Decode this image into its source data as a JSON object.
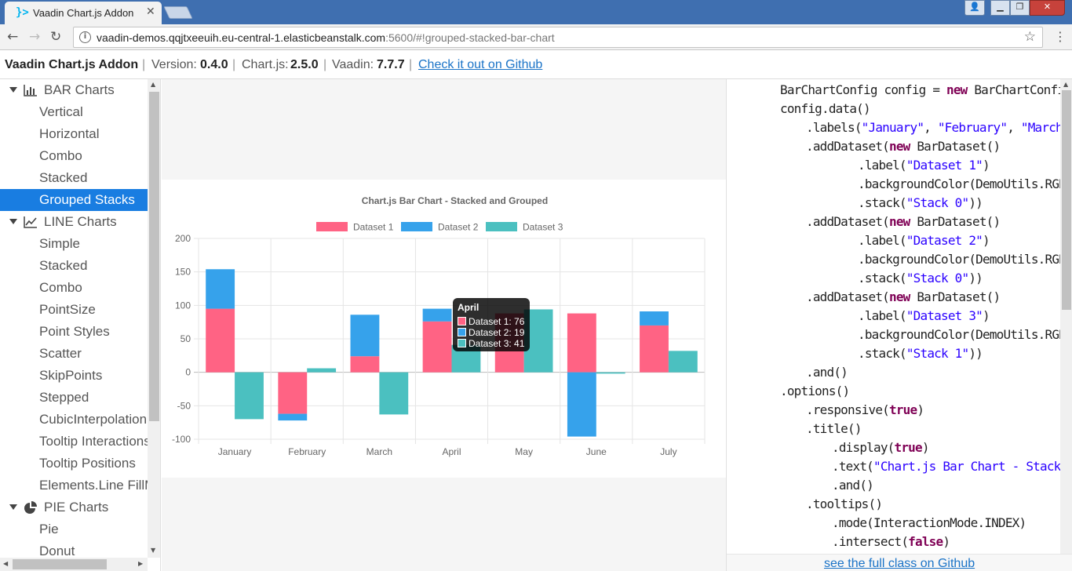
{
  "browser": {
    "tab_title": "Vaadin Chart.js Addon",
    "url_host": "vaadin-demos.qqjtxeeuih.eu-central-1.elasticbeanstalk.com",
    "url_rest": ":5600/#!grouped-stacked-bar-chart"
  },
  "header": {
    "app_name": "Vaadin Chart.js Addon",
    "version_label": "Version:",
    "version": "0.4.0",
    "chartjs_label": "Chart.js:",
    "chartjs_version": "2.5.0",
    "vaadin_label": "Vaadin:",
    "vaadin_version": "7.7.7",
    "github_link": "Check it out on Github"
  },
  "sidebar": {
    "bar_category": "BAR Charts",
    "bar_items": [
      "Vertical",
      "Horizontal",
      "Combo",
      "Stacked",
      "Grouped Stacks"
    ],
    "line_category": "LINE Charts",
    "line_items": [
      "Simple",
      "Stacked",
      "Combo",
      "PointSize",
      "Point Styles",
      "Scatter",
      "SkipPoints",
      "Stepped",
      "CubicInterpolation",
      "Tooltip Interactions",
      "Tooltip Positions",
      "Elements.Line FillMode"
    ],
    "pie_category": "PIE Charts",
    "pie_items": [
      "Pie",
      "Donut"
    ]
  },
  "chart_data": {
    "type": "bar",
    "title": "Chart.js Bar Chart - Stacked and Grouped",
    "categories": [
      "January",
      "February",
      "March",
      "April",
      "May",
      "June",
      "July"
    ],
    "ylim": [
      -100,
      200
    ],
    "yticks": [
      200,
      150,
      100,
      50,
      0,
      -50,
      -100
    ],
    "grid": true,
    "legend_position": "top",
    "series": [
      {
        "name": "Dataset 1",
        "stack": "Stack 0",
        "color": "#ff6384",
        "values": [
          95,
          -62,
          24,
          76,
          88,
          88,
          70
        ]
      },
      {
        "name": "Dataset 2",
        "stack": "Stack 0",
        "color": "#36a2eb",
        "values": [
          59,
          -10,
          62,
          19,
          0,
          -96,
          21
        ]
      },
      {
        "name": "Dataset 3",
        "stack": "Stack 1",
        "color": "#4bc0c0",
        "values": [
          -70,
          6,
          -63,
          41,
          94,
          -2,
          32
        ]
      }
    ],
    "tooltip": {
      "title": "April",
      "lines": [
        "Dataset 1: 76",
        "Dataset 2: 19",
        "Dataset 3: 41"
      ]
    }
  },
  "code": {
    "lines": [
      {
        "indent": 2,
        "parts": [
          [
            "",
            "BarChartConfig config = "
          ],
          [
            "kw",
            "new"
          ],
          [
            "",
            " BarChartConfig()"
          ]
        ]
      },
      {
        "indent": 2,
        "parts": [
          [
            "",
            "config.data()"
          ]
        ]
      },
      {
        "indent": 3,
        "parts": [
          [
            "",
            ".labels("
          ],
          [
            "str",
            "\"January\""
          ],
          [
            "",
            ", "
          ],
          [
            "str",
            "\"February\""
          ],
          [
            "",
            ", "
          ],
          [
            "str",
            "\"March\""
          ],
          [
            "",
            ", "
          ],
          [
            "str",
            "\""
          ]
        ]
      },
      {
        "indent": 3,
        "parts": [
          [
            "",
            ".addDataset("
          ],
          [
            "kw",
            "new"
          ],
          [
            "",
            " BarDataset()"
          ]
        ]
      },
      {
        "indent": 5,
        "parts": [
          [
            "",
            ".label("
          ],
          [
            "str",
            "\"Dataset 1\""
          ],
          [
            "",
            ")"
          ]
        ]
      },
      {
        "indent": 5,
        "parts": [
          [
            "",
            ".backgroundColor(DemoUtils.RGB_RE"
          ]
        ]
      },
      {
        "indent": 5,
        "parts": [
          [
            "",
            ".stack("
          ],
          [
            "str",
            "\"Stack 0\""
          ],
          [
            "",
            "))"
          ]
        ]
      },
      {
        "indent": 3,
        "parts": [
          [
            "",
            ".addDataset("
          ],
          [
            "kw",
            "new"
          ],
          [
            "",
            " BarDataset()"
          ]
        ]
      },
      {
        "indent": 5,
        "parts": [
          [
            "",
            ".label("
          ],
          [
            "str",
            "\"Dataset 2\""
          ],
          [
            "",
            ")"
          ]
        ]
      },
      {
        "indent": 5,
        "parts": [
          [
            "",
            ".backgroundColor(DemoUtils.RGB_BL"
          ]
        ]
      },
      {
        "indent": 5,
        "parts": [
          [
            "",
            ".stack("
          ],
          [
            "str",
            "\"Stack 0\""
          ],
          [
            "",
            "))"
          ]
        ]
      },
      {
        "indent": 3,
        "parts": [
          [
            "",
            ".addDataset("
          ],
          [
            "kw",
            "new"
          ],
          [
            "",
            " BarDataset()"
          ]
        ]
      },
      {
        "indent": 5,
        "parts": [
          [
            "",
            ".label("
          ],
          [
            "str",
            "\"Dataset 3\""
          ],
          [
            "",
            ")"
          ]
        ]
      },
      {
        "indent": 5,
        "parts": [
          [
            "",
            ".backgroundColor(DemoUtils.RGB_GR"
          ]
        ]
      },
      {
        "indent": 5,
        "parts": [
          [
            "",
            ".stack("
          ],
          [
            "str",
            "\"Stack 1\""
          ],
          [
            "",
            "))"
          ]
        ]
      },
      {
        "indent": 3,
        "parts": [
          [
            "",
            ".and()"
          ]
        ]
      },
      {
        "indent": 2,
        "parts": [
          [
            "",
            ".options()"
          ]
        ]
      },
      {
        "indent": 3,
        "parts": [
          [
            "",
            ".responsive("
          ],
          [
            "kw",
            "true"
          ],
          [
            "",
            ")"
          ]
        ]
      },
      {
        "indent": 3,
        "parts": [
          [
            "",
            ".title()"
          ]
        ]
      },
      {
        "indent": 4,
        "parts": [
          [
            "",
            ".display("
          ],
          [
            "kw",
            "true"
          ],
          [
            "",
            ")"
          ]
        ]
      },
      {
        "indent": 4,
        "parts": [
          [
            "",
            ".text("
          ],
          [
            "str",
            "\"Chart.js Bar Chart - Stacked a"
          ]
        ]
      },
      {
        "indent": 4,
        "parts": [
          [
            "",
            ".and()"
          ]
        ]
      },
      {
        "indent": 3,
        "parts": [
          [
            "",
            ".tooltips()"
          ]
        ]
      },
      {
        "indent": 4,
        "parts": [
          [
            "",
            ".mode(InteractionMode.INDEX)"
          ]
        ]
      },
      {
        "indent": 4,
        "parts": [
          [
            "",
            ".intersect("
          ],
          [
            "kw",
            "false"
          ],
          [
            "",
            ")"
          ]
        ]
      }
    ],
    "footer_link": "see the full class on Github"
  }
}
